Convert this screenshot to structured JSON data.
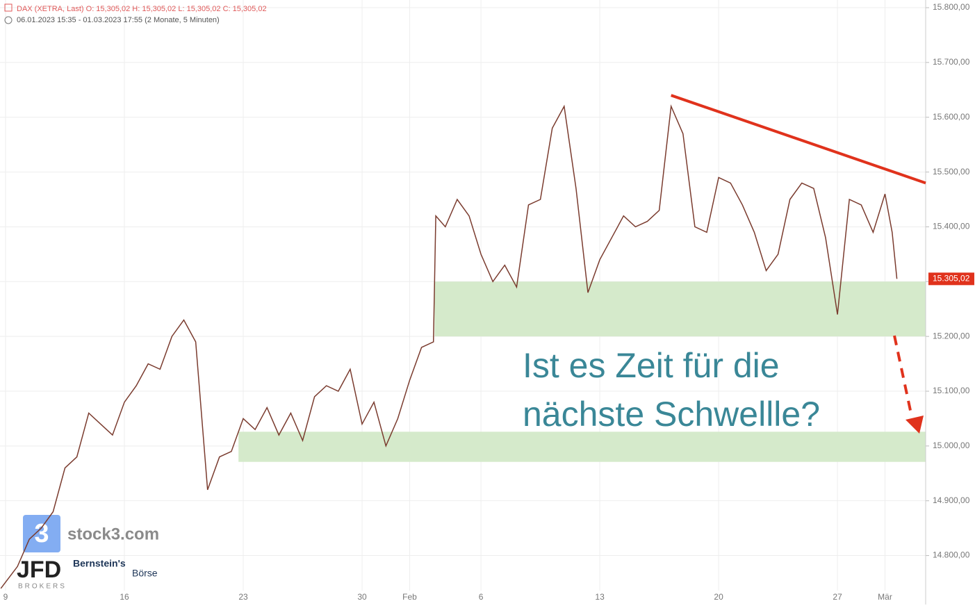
{
  "chart_data": {
    "type": "line",
    "header": "DAX (XETRA, Last)  O: 15,305,02  H: 15,305,02  L: 15,305,02  C: 15,305,02",
    "subheader": "06.01.2023 15:35 - 01.03.2023 17:55   (2 Monate, 5 Minuten)",
    "annotation": [
      "Ist es Zeit für die",
      "nächste Schwellle?"
    ],
    "logos": [
      "stock3.com",
      "JFD",
      "BROKERS",
      "Bernstein's",
      "Börse"
    ],
    "series": [
      {
        "name": "DAX",
        "color": "#7a3b2e",
        "x": [
          -0.2,
          0.5,
          1,
          1.5,
          2,
          2.5,
          3,
          3.5,
          4,
          4.5,
          5,
          5.5,
          6,
          6.5,
          7,
          7.5,
          8,
          8.5,
          9,
          9.5,
          10,
          10.5,
          11,
          11.5,
          12,
          12.5,
          13,
          13.5,
          14,
          14.5,
          15,
          15.5,
          16,
          16.5,
          17,
          17.5,
          18,
          18.1,
          18.5,
          19,
          19.5,
          20,
          20.5,
          21,
          21.5,
          22,
          22.5,
          23,
          23.5,
          24,
          24.5,
          25,
          25.5,
          26,
          26.5,
          27,
          27.5,
          28,
          28.5,
          29,
          29.5,
          30,
          30.5,
          31,
          31.5,
          32,
          32.5,
          33,
          33.5,
          34,
          34.5,
          35,
          35.5,
          36,
          36.5,
          37,
          37.3,
          37.5
        ],
        "values": [
          14740,
          14780,
          14830,
          14850,
          14880,
          14960,
          14980,
          15060,
          15040,
          15020,
          15080,
          15110,
          15150,
          15140,
          15200,
          15230,
          15190,
          14920,
          14980,
          14990,
          15050,
          15030,
          15070,
          15020,
          15060,
          15010,
          15090,
          15110,
          15100,
          15140,
          15040,
          15080,
          15000,
          15050,
          15120,
          15180,
          15190,
          15420,
          15400,
          15450,
          15420,
          15350,
          15300,
          15330,
          15290,
          15440,
          15450,
          15580,
          15620,
          15470,
          15280,
          15340,
          15380,
          15420,
          15400,
          15410,
          15430,
          15620,
          15570,
          15400,
          15390,
          15490,
          15480,
          15440,
          15390,
          15320,
          15350,
          15450,
          15480,
          15470,
          15380,
          15240,
          15450,
          15440,
          15390,
          15460,
          15390,
          15305.02
        ]
      }
    ],
    "last_price": {
      "value": 15305.02,
      "label": "15.305,02"
    },
    "zones": [
      {
        "x0": 18.05,
        "y0": 15200,
        "y1": 15300,
        "color": "#d5eacb"
      },
      {
        "x0": 9.8,
        "y0": 14971,
        "y1": 15026,
        "color": "#d5eacb"
      }
    ],
    "trendline": {
      "x": [
        28,
        38.71
      ],
      "y": [
        15640,
        15480
      ],
      "color": "#e0321c"
    },
    "xlim": [
      -0.234,
      38.71
    ],
    "ylim": [
      14736,
      15814
    ],
    "xticks": [
      {
        "value": 0,
        "label": "9"
      },
      {
        "value": 5,
        "label": "16"
      },
      {
        "value": 10,
        "label": "23"
      },
      {
        "value": 15,
        "label": "30"
      },
      {
        "value": 17,
        "label": "Feb"
      },
      {
        "value": 20,
        "label": "6"
      },
      {
        "value": 25,
        "label": "13"
      },
      {
        "value": 30,
        "label": "20"
      },
      {
        "value": 35,
        "label": "27"
      },
      {
        "value": 37,
        "label": "Mär"
      }
    ],
    "yticks": [
      {
        "value": 14800,
        "label": "14.800,00"
      },
      {
        "value": 14900,
        "label": "14.900,00"
      },
      {
        "value": 15000,
        "label": "15.000,00"
      },
      {
        "value": 15100,
        "label": "15.100,00"
      },
      {
        "value": 15200,
        "label": "15.200,00"
      },
      {
        "value": 15300,
        "label": "15.300,00"
      },
      {
        "value": 15400,
        "label": "15.400,00"
      },
      {
        "value": 15500,
        "label": "15.500,00"
      },
      {
        "value": 15600,
        "label": "15.600,00"
      },
      {
        "value": 15700,
        "label": "15.700,00"
      },
      {
        "value": 15800,
        "label": "15.800,00"
      }
    ],
    "grid": true
  }
}
